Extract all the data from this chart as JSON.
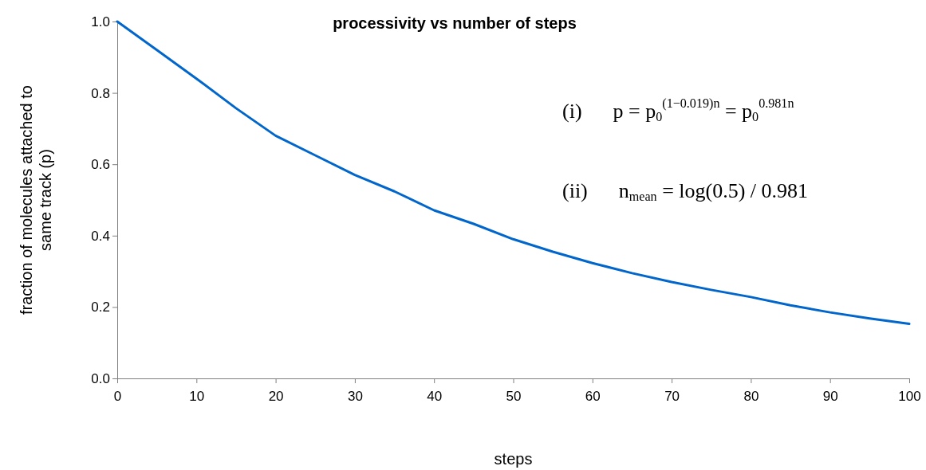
{
  "chart_data": {
    "type": "line",
    "title": "processivity vs number of steps",
    "xlabel": "steps",
    "ylabel": "fraction of molecules attached to same track (p)",
    "x": [
      0,
      5,
      10,
      15,
      20,
      25,
      30,
      35,
      40,
      45,
      50,
      55,
      60,
      65,
      70,
      75,
      80,
      85,
      90,
      95,
      100
    ],
    "series": [
      {
        "color": "#0066cc",
        "values": [
          1.0,
          0.92,
          0.84,
          0.757,
          0.68,
          0.625,
          0.57,
          0.524,
          0.471,
          0.433,
          0.39,
          0.355,
          0.323,
          0.295,
          0.27,
          0.248,
          0.228,
          0.205,
          0.185,
          0.168,
          0.153
        ]
      }
    ],
    "xlim": [
      0,
      100
    ],
    "xticks": [
      0,
      10,
      20,
      30,
      40,
      50,
      60,
      70,
      80,
      90,
      100
    ],
    "ylim": [
      0,
      1
    ],
    "yticks": [
      {
        "value": 0,
        "label": "0.0"
      },
      {
        "value": 0.2,
        "label": "0.2"
      },
      {
        "value": 0.4,
        "label": "0.4"
      },
      {
        "value": 0.6,
        "label": "0.6"
      },
      {
        "value": 0.8,
        "label": "0.8"
      },
      {
        "value": 1,
        "label": "1.0"
      }
    ],
    "annotations": [
      "(i)      p = p$_{0}$$^{(1−0.019)n}$ = p$_{0}$$^{0.981n}$",
      "(ii)      n$_{mean}$ = log(0.5) / 0.981"
    ],
    "marker": "none",
    "line_style": "solid"
  }
}
